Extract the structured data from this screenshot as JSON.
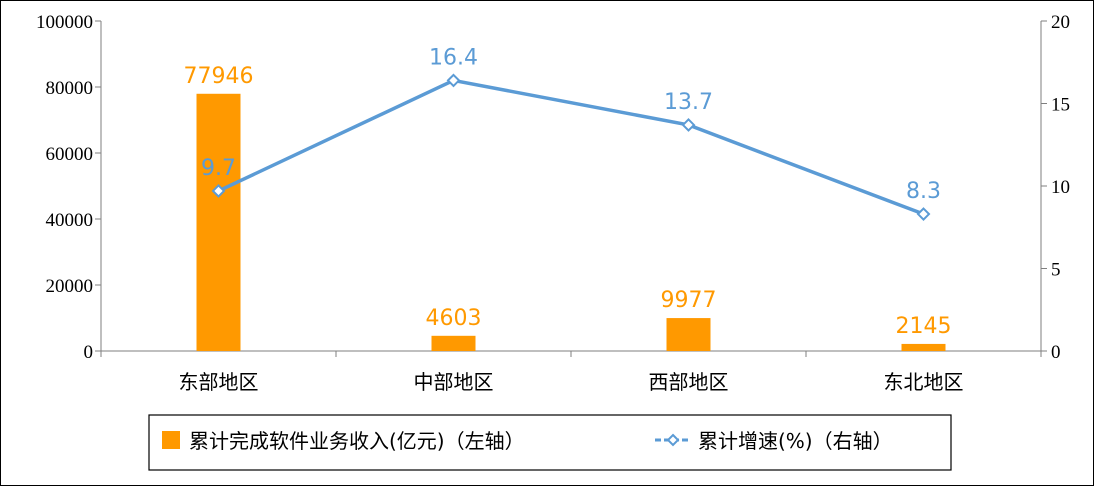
{
  "chart_data": {
    "type": "bar+line",
    "categories": [
      "东部地区",
      "中部地区",
      "西部地区",
      "东北地区"
    ],
    "series": [
      {
        "name": "累计完成软件业务收入(亿元)（左轴）",
        "type": "bar",
        "axis": "left",
        "values": [
          77946,
          4603,
          9977,
          2145
        ],
        "color": "#FF9900"
      },
      {
        "name": "累计增速(%)（右轴）",
        "type": "line",
        "axis": "right",
        "values": [
          9.7,
          16.4,
          13.7,
          8.3
        ],
        "color": "#5B9BD5"
      }
    ],
    "left_axis": {
      "ylim": [
        0,
        100000
      ],
      "ticks": [
        "0",
        "20000",
        "40000",
        "60000",
        "80000",
        "100000"
      ]
    },
    "right_axis": {
      "ylim": [
        0,
        20
      ],
      "ticks": [
        "0",
        "5",
        "10",
        "15",
        "20"
      ]
    },
    "bar_labels": [
      "77946",
      "4603",
      "9977",
      "2145"
    ],
    "line_labels": [
      "9.7",
      "16.4",
      "13.7",
      "8.3"
    ],
    "grid": false,
    "legend_position": "bottom"
  }
}
